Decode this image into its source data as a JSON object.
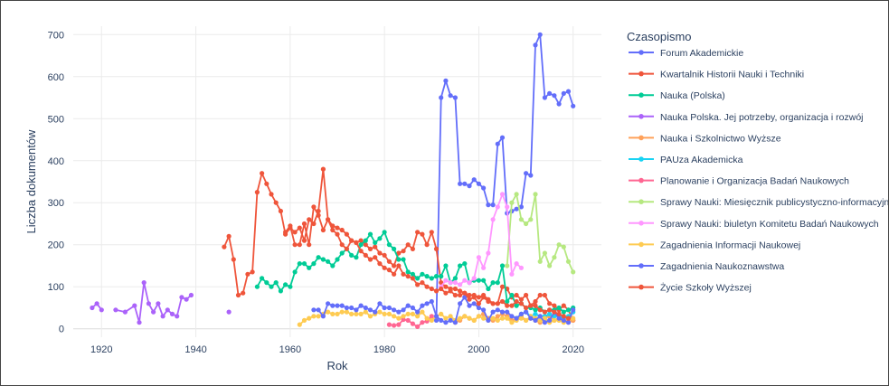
{
  "chart_data": {
    "type": "line",
    "xlabel": "Rok",
    "ylabel": "Liczba dokumentów",
    "legend_title": "Czasopismo",
    "legend_placement": "right",
    "grid": true,
    "xlim": [
      1914,
      2026
    ],
    "ylim": [
      -20,
      720
    ],
    "x_ticks": [
      1920,
      1940,
      1960,
      1980,
      2000,
      2020
    ],
    "y_ticks": [
      0,
      100,
      200,
      300,
      400,
      500,
      600,
      700
    ],
    "series": [
      {
        "name": "Forum Akademickie",
        "color": "#636efa",
        "x": [
          1991,
          1992,
          1993,
          1994,
          1995,
          1996,
          1997,
          1998,
          1999,
          2000,
          2001,
          2002,
          2003,
          2004,
          2005,
          2006,
          2007,
          2008,
          2009,
          2010,
          2011,
          2012,
          2013,
          2014,
          2015,
          2016,
          2017,
          2018,
          2019,
          2020
        ],
        "y": [
          20,
          550,
          590,
          555,
          550,
          345,
          345,
          340,
          355,
          345,
          335,
          295,
          295,
          440,
          455,
          275,
          280,
          285,
          290,
          370,
          365,
          675,
          700,
          550,
          560,
          555,
          535,
          560,
          565,
          530
        ]
      },
      {
        "name": "Kwartalnik Historii Nauki i Techniki",
        "color": "#ef553b",
        "x": [
          1946,
          1947,
          1948,
          1949,
          1950,
          1951,
          1952,
          1953,
          1954,
          1955,
          1956,
          1957,
          1958,
          1959,
          1960,
          1961,
          1962,
          1963,
          1964,
          1965,
          1966,
          1967,
          1968,
          1969,
          1970,
          1971,
          1972,
          1973,
          1974,
          1975,
          1976,
          1977,
          1978,
          1979,
          1980,
          1981,
          1982,
          1983,
          1984,
          1985,
          1986,
          1987,
          1988,
          1989,
          1990,
          1991,
          1992,
          1993,
          1994,
          1995,
          1996,
          1997,
          1998,
          1999,
          2000,
          2001,
          2002,
          2003,
          2004,
          2005,
          2006,
          2007,
          2008,
          2009,
          2010,
          2011,
          2012,
          2013,
          2014,
          2015,
          2016,
          2017,
          2018,
          2019,
          2020
        ],
        "y": [
          195,
          220,
          165,
          80,
          85,
          130,
          135,
          325,
          370,
          345,
          320,
          300,
          280,
          225,
          240,
          230,
          240,
          210,
          260,
          250,
          280,
          380,
          260,
          245,
          240,
          235,
          225,
          210,
          205,
          210,
          200,
          190,
          195,
          180,
          175,
          160,
          150,
          180,
          185,
          200,
          190,
          230,
          225,
          200,
          230,
          190,
          110,
          100,
          95,
          95,
          90,
          85,
          80,
          80,
          75,
          80,
          70,
          60,
          60,
          100,
          95,
          75,
          80,
          70,
          80,
          55,
          65,
          80,
          80,
          60,
          55,
          45,
          55,
          45,
          20
        ]
      },
      {
        "name": "Nauka (Polska)",
        "color": "#00cc96",
        "x": [
          1953,
          1954,
          1955,
          1956,
          1957,
          1958,
          1959,
          1960,
          1961,
          1962,
          1963,
          1964,
          1965,
          1966,
          1967,
          1968,
          1969,
          1970,
          1971,
          1972,
          1973,
          1974,
          1975,
          1976,
          1977,
          1978,
          1979,
          1980,
          1981,
          1982,
          1983,
          1984,
          1985,
          1986,
          1987,
          1988,
          1989,
          1990,
          1991,
          1992,
          1993,
          1994,
          1995,
          1996,
          1997,
          1998,
          1999,
          2000,
          2001,
          2002,
          2003,
          2004,
          2005,
          2006,
          2007,
          2008,
          2009,
          2010,
          2011,
          2012,
          2013,
          2014,
          2015,
          2016,
          2017,
          2018,
          2019,
          2020
        ],
        "y": [
          100,
          120,
          110,
          100,
          110,
          90,
          105,
          100,
          135,
          155,
          155,
          145,
          155,
          170,
          165,
          160,
          150,
          165,
          180,
          190,
          175,
          170,
          200,
          210,
          225,
          205,
          215,
          230,
          200,
          190,
          165,
          165,
          135,
          130,
          120,
          130,
          125,
          120,
          125,
          125,
          150,
          110,
          120,
          150,
          155,
          110,
          115,
          115,
          115,
          95,
          110,
          110,
          150,
          65,
          80,
          55,
          60,
          50,
          50,
          45,
          50,
          40,
          45,
          45,
          50,
          40,
          45,
          50
        ]
      },
      {
        "name": "Nauka Polska. Jej potrzeby, organizacja i rozwój",
        "color": "#ab63fa",
        "x": [
          1918,
          1919,
          1920,
          1923,
          1925,
          1927,
          1928,
          1929,
          1930,
          1931,
          1932,
          1933,
          1934,
          1935,
          1936,
          1937,
          1938,
          1939,
          1947
        ],
        "y": [
          50,
          60,
          45,
          45,
          40,
          55,
          15,
          110,
          60,
          40,
          60,
          30,
          45,
          35,
          30,
          75,
          70,
          80,
          40
        ]
      },
      {
        "name": "Nauka i Szkolnictwo Wyższe",
        "color": "#ffa15a",
        "x": [
          1995,
          1996,
          1997,
          1998,
          1999,
          2000,
          2001,
          2002,
          2003,
          2004,
          2005,
          2006,
          2007,
          2008,
          2009,
          2010,
          2011,
          2012,
          2013,
          2014,
          2015,
          2016,
          2017,
          2018,
          2019,
          2020
        ],
        "y": [
          15,
          20,
          30,
          25,
          20,
          30,
          35,
          25,
          20,
          30,
          35,
          30,
          20,
          25,
          30,
          20,
          25,
          20,
          15,
          25,
          30,
          20,
          25,
          20,
          15,
          20
        ]
      },
      {
        "name": "PAUza Akademicka",
        "color": "#19d3f3",
        "x": [
          2008,
          2009,
          2010,
          2011,
          2012,
          2013,
          2014,
          2015,
          2016,
          2017,
          2018,
          2019,
          2020
        ],
        "y": [
          25,
          35,
          40,
          30,
          35,
          30,
          30,
          35,
          30,
          30,
          25,
          30,
          40
        ]
      },
      {
        "name": "Planowanie i Organizacja Badań Naukowych",
        "color": "#ff6692",
        "x": [
          1981,
          1982,
          1983,
          1984,
          1985,
          1986,
          1987,
          1988,
          1989,
          1990
        ],
        "y": [
          10,
          8,
          10,
          22,
          20,
          12,
          5,
          15,
          18,
          30
        ]
      },
      {
        "name": "Sprawy Nauki: Miesięcznik publicystyczno-informacyjny",
        "color": "#b6e880",
        "x": [
          2006,
          2007,
          2008,
          2009,
          2010,
          2011,
          2012,
          2013,
          2014,
          2015,
          2016,
          2017,
          2018,
          2019,
          2020
        ],
        "y": [
          150,
          300,
          320,
          260,
          250,
          260,
          320,
          160,
          180,
          150,
          170,
          200,
          195,
          160,
          135
        ]
      },
      {
        "name": "Sprawy Nauki: biuletyn Komitetu Badań Naukowych",
        "color": "#ff97ff",
        "x": [
          1992,
          1993,
          1994,
          1995,
          1996,
          1997,
          1998,
          1999,
          2000,
          2001,
          2002,
          2003,
          2004,
          2005,
          2006,
          2007,
          2008,
          2009
        ],
        "y": [
          100,
          115,
          110,
          110,
          105,
          115,
          110,
          120,
          170,
          145,
          180,
          260,
          290,
          320,
          290,
          130,
          155,
          145
        ]
      },
      {
        "name": "Zagadnienia Informacji Naukowej",
        "color": "#fecb52",
        "x": [
          1962,
          1963,
          1964,
          1965,
          1966,
          1967,
          1968,
          1969,
          1970,
          1971,
          1972,
          1973,
          1974,
          1975,
          1976,
          1977,
          1978,
          1979,
          1980,
          1981,
          1982,
          1983,
          1984,
          1985,
          1986,
          1987,
          1988,
          1989,
          1990,
          1991,
          1992,
          1993,
          1994,
          1995,
          1996,
          1997,
          1998,
          1999,
          2000,
          2001,
          2002,
          2003,
          2004,
          2005,
          2006,
          2007,
          2008,
          2009,
          2010,
          2011,
          2012,
          2013,
          2014,
          2015,
          2016,
          2017,
          2018,
          2019,
          2020
        ],
        "y": [
          10,
          20,
          25,
          30,
          30,
          35,
          40,
          35,
          35,
          40,
          40,
          35,
          35,
          35,
          40,
          30,
          35,
          40,
          35,
          35,
          30,
          25,
          30,
          35,
          35,
          30,
          40,
          25,
          20,
          30,
          35,
          25,
          30,
          20,
          25,
          30,
          25,
          20,
          30,
          25,
          20,
          25,
          20,
          25,
          25,
          15,
          20,
          25,
          20,
          30,
          25,
          20,
          25,
          15,
          20,
          20,
          15,
          20,
          25
        ]
      },
      {
        "name": "Zagadnienia Naukoznawstwa",
        "color": "#636efa",
        "x": [
          1965,
          1966,
          1967,
          1968,
          1969,
          1970,
          1971,
          1972,
          1973,
          1974,
          1975,
          1976,
          1977,
          1978,
          1979,
          1980,
          1981,
          1982,
          1983,
          1984,
          1985,
          1986,
          1987,
          1988,
          1989,
          1990,
          1991,
          1992,
          1993,
          1994,
          1995,
          1996,
          1997,
          1998,
          1999,
          2000,
          2001,
          2002,
          2003,
          2004,
          2005,
          2006,
          2007,
          2008,
          2009,
          2010,
          2011,
          2012,
          2013,
          2014,
          2015,
          2016,
          2017,
          2018,
          2019,
          2020
        ],
        "y": [
          45,
          45,
          30,
          60,
          55,
          55,
          55,
          50,
          50,
          45,
          55,
          50,
          45,
          40,
          60,
          50,
          50,
          45,
          40,
          45,
          55,
          50,
          40,
          55,
          60,
          65,
          30,
          20,
          15,
          20,
          15,
          60,
          75,
          55,
          60,
          50,
          45,
          20,
          40,
          45,
          40,
          40,
          30,
          25,
          35,
          40,
          25,
          20,
          30,
          15,
          20,
          40,
          25,
          20,
          15,
          45
        ]
      },
      {
        "name": "Życie Szkoły Wyższej",
        "color": "#ef553b",
        "x": [
          1959,
          1960,
          1961,
          1962,
          1963,
          1964,
          1965,
          1966,
          1967,
          1968,
          1969,
          1970,
          1971,
          1972,
          1973,
          1974,
          1975,
          1976,
          1977,
          1978,
          1979,
          1980,
          1981,
          1982,
          1983,
          1984,
          1985,
          1986,
          1987,
          1988,
          1989,
          1990,
          1991,
          1992,
          1993,
          1994,
          1995,
          1996,
          1997,
          1998,
          1999,
          2000,
          2001,
          2002,
          2003,
          2004,
          2005,
          2006,
          2007,
          2008,
          2009,
          2010,
          2011,
          2012,
          2013,
          2014,
          2015,
          2016,
          2017,
          2018,
          2019
        ],
        "y": [
          230,
          245,
          200,
          200,
          250,
          200,
          290,
          270,
          235,
          260,
          235,
          225,
          200,
          190,
          210,
          205,
          185,
          175,
          165,
          170,
          155,
          145,
          140,
          130,
          150,
          130,
          125,
          120,
          105,
          110,
          100,
          95,
          90,
          95,
          85,
          90,
          80,
          80,
          85,
          70,
          75,
          60,
          75,
          65,
          60,
          60,
          65,
          55,
          55,
          65,
          60,
          50,
          55,
          55,
          45,
          40,
          45,
          40,
          35,
          30,
          25
        ]
      }
    ]
  }
}
